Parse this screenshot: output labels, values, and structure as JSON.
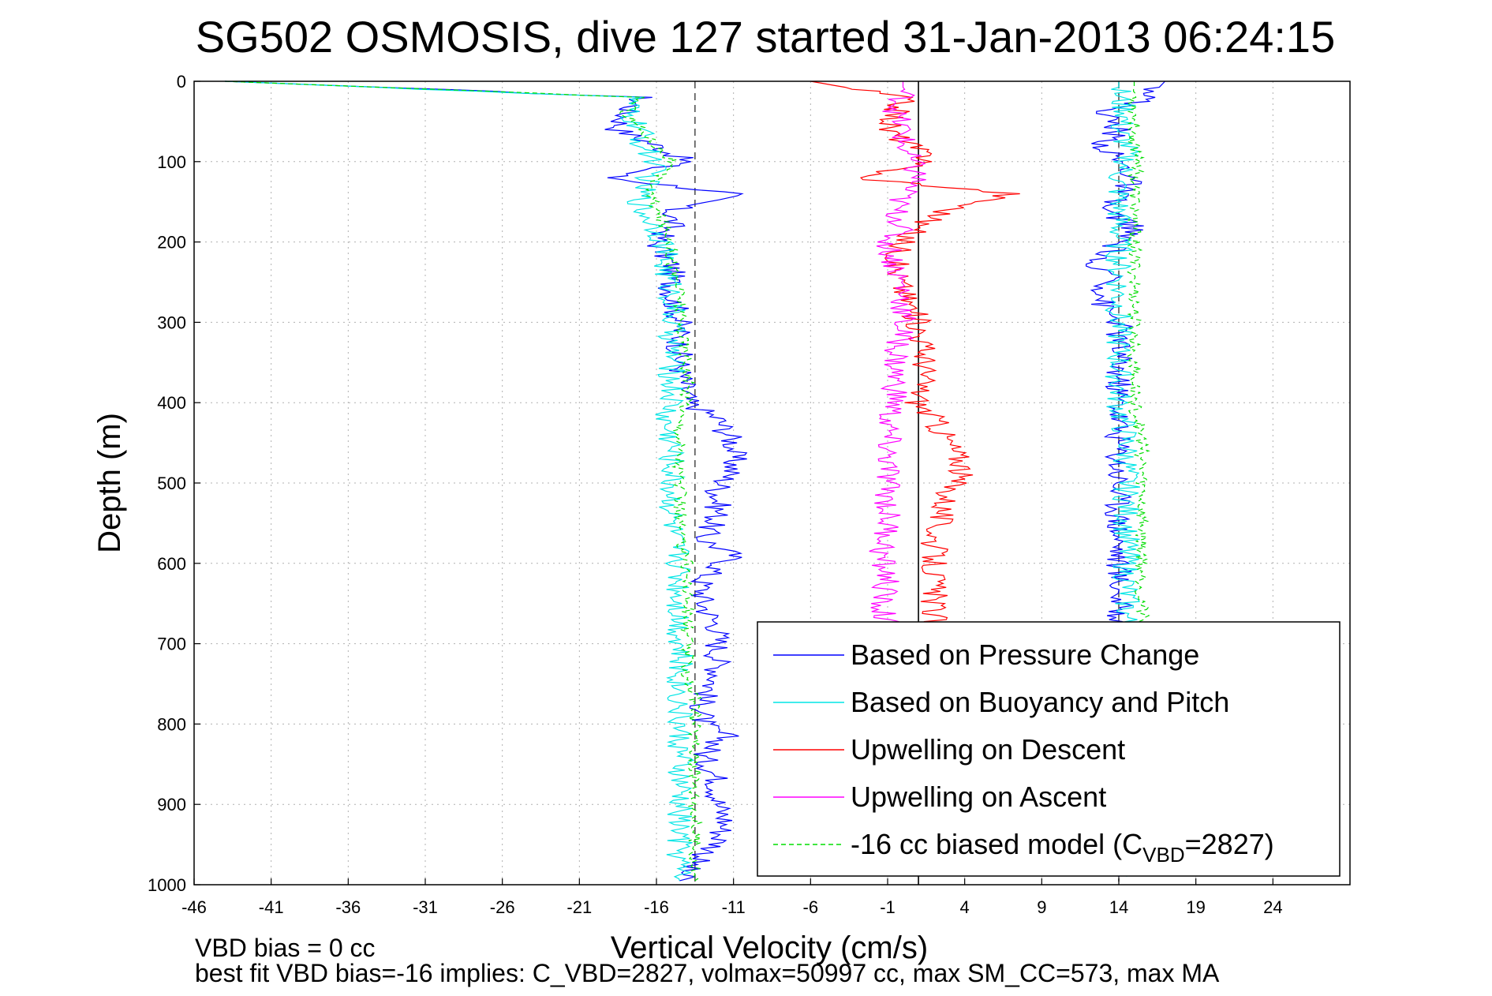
{
  "chart_data": {
    "type": "line",
    "title": "SG502 OSMOSIS, dive 127 started 31-Jan-2013 06:24:15",
    "xlabel": "Vertical Velocity (cm/s)",
    "ylabel": "Depth (m)",
    "xlim": [
      -46,
      29
    ],
    "ylim": [
      0,
      1000
    ],
    "y_reversed": true,
    "grid": true,
    "x_ticks": [
      -46,
      -41,
      -36,
      -31,
      -26,
      -21,
      -16,
      -11,
      -6,
      -1,
      4,
      9,
      14,
      19,
      24
    ],
    "y_ticks": [
      0,
      100,
      200,
      300,
      400,
      500,
      600,
      700,
      800,
      900,
      1000
    ],
    "reference_lines": [
      {
        "x": -13.5,
        "style": "dashed",
        "color": "#555555"
      },
      {
        "x": 1,
        "style": "solid",
        "color": "#000000"
      },
      {
        "x": 14,
        "style": "dashed",
        "color": "#555555"
      }
    ],
    "legend_position": "bottom-right",
    "series": [
      {
        "name": "Based on Pressure Change",
        "color": "#0000ff",
        "branch": "descent",
        "depth": [
          0,
          20,
          40,
          60,
          80,
          100,
          120,
          140,
          160,
          180,
          200,
          230,
          260,
          300,
          350,
          400,
          420,
          450,
          480,
          510,
          540,
          570,
          590,
          620,
          650,
          680,
          710,
          740,
          770,
          800,
          815,
          840,
          870,
          900,
          920,
          950,
          980,
          995
        ],
        "velocity": [
          -44,
          -17,
          -18,
          -18.5,
          -16,
          -14,
          -19,
          -11,
          -15,
          -15,
          -16,
          -15,
          -15,
          -14.5,
          -14.5,
          -14,
          -12,
          -11,
          -11,
          -12,
          -12,
          -13,
          -11,
          -13,
          -13,
          -12,
          -12,
          -12,
          -13,
          -13,
          -11.5,
          -13,
          -12,
          -12,
          -11.5,
          -12,
          -14,
          -14.5
        ]
      },
      {
        "name": "Based on Buoyancy and Pitch",
        "color": "#00e5e5",
        "branch": "descent",
        "depth": [
          0,
          20,
          40,
          60,
          80,
          100,
          120,
          140,
          160,
          180,
          200,
          230,
          260,
          300,
          350,
          400,
          420,
          450,
          480,
          510,
          540,
          570,
          590,
          620,
          650,
          680,
          710,
          740,
          770,
          800,
          815,
          840,
          870,
          900,
          920,
          950,
          980,
          995
        ],
        "velocity": [
          -44,
          -17.5,
          -18,
          -17,
          -17,
          -16,
          -16.5,
          -17,
          -17,
          -16,
          -15.5,
          -15.5,
          -15,
          -15,
          -15,
          -15,
          -15.5,
          -15,
          -15,
          -15,
          -15,
          -15,
          -14.5,
          -14.5,
          -14.5,
          -14.5,
          -14.5,
          -14.5,
          -14.5,
          -14.5,
          -14.5,
          -14.5,
          -14.5,
          -14.5,
          -14.5,
          -14.5,
          -14.5,
          -14.5
        ]
      },
      {
        "name": "Upwelling on Descent",
        "color": "#ff0000",
        "branch": "descent",
        "depth": [
          0,
          20,
          40,
          60,
          80,
          100,
          120,
          140,
          160,
          180,
          200,
          230,
          260,
          300,
          350,
          400,
          420,
          450,
          480,
          510,
          540,
          570,
          590,
          620,
          650,
          680
        ],
        "velocity": [
          -6,
          0,
          -0.5,
          -1,
          0.5,
          2,
          -3,
          7,
          3,
          1,
          0,
          -0.5,
          0,
          1,
          1.5,
          1,
          2,
          3,
          4,
          3,
          2.5,
          2,
          2,
          2,
          2,
          2
        ]
      },
      {
        "name": "Upwelling on Ascent",
        "color": "#ff00ff",
        "branch": "ascent",
        "depth": [
          0,
          20,
          40,
          60,
          80,
          100,
          120,
          140,
          160,
          180,
          200,
          230,
          260,
          300,
          350,
          400,
          420,
          450,
          480,
          510,
          540,
          570,
          590,
          620,
          650,
          680
        ],
        "velocity": [
          0,
          0,
          -0.5,
          0,
          0,
          0.5,
          1,
          0,
          -0.5,
          0,
          -1,
          -0.5,
          0,
          0,
          -0.5,
          -0.5,
          -1,
          -1,
          -1,
          -1,
          -1,
          -1,
          -1.5,
          -1,
          -1.5,
          -1
        ]
      },
      {
        "name": "-16 cc biased model (C_VBD=2827)",
        "color": "#00dd00",
        "branch": "descent",
        "style": "dashed",
        "depth": [
          0,
          20,
          40,
          60,
          80,
          100,
          120,
          140,
          160,
          180,
          200,
          230,
          260,
          300,
          350,
          400,
          420,
          450,
          480,
          510,
          540,
          570,
          590,
          620,
          650,
          680,
          710,
          740,
          770,
          800,
          815,
          840,
          870,
          900,
          920,
          950,
          980,
          995
        ],
        "velocity": [
          -44,
          -17,
          -18,
          -17,
          -16,
          -15,
          -16,
          -16.5,
          -16,
          -15.5,
          -15,
          -15,
          -14.5,
          -14.5,
          -14,
          -14,
          -14.5,
          -14.5,
          -14.5,
          -14.5,
          -14.5,
          -14.5,
          -14,
          -14,
          -14,
          -14,
          -14,
          -14,
          -13.5,
          -13.5,
          -13.5,
          -13.5,
          -13.5,
          -13.5,
          -13.5,
          -13.5,
          -13.5,
          -13.5
        ]
      },
      {
        "name": "",
        "color": "#0000ff",
        "branch": "ascent",
        "depth": [
          0,
          20,
          40,
          60,
          80,
          100,
          120,
          140,
          160,
          180,
          200,
          220,
          230,
          240,
          260,
          280,
          300,
          350,
          400,
          450,
          500,
          550,
          600,
          650,
          700,
          750,
          800,
          850,
          900,
          950,
          990
        ],
        "velocity": [
          17,
          16,
          13,
          14,
          13,
          14,
          15,
          14,
          13,
          15,
          14,
          13,
          11,
          14,
          13,
          13,
          14,
          14,
          14,
          14,
          14,
          14,
          14,
          14,
          14,
          14,
          14,
          14,
          14,
          14,
          14
        ]
      },
      {
        "name": "",
        "color": "#00e5e5",
        "branch": "ascent",
        "depth": [
          0,
          20,
          40,
          60,
          80,
          100,
          120,
          140,
          160,
          180,
          200,
          250,
          300,
          350,
          400,
          450,
          500,
          550,
          600,
          650,
          700,
          750,
          800,
          850,
          900,
          950,
          990
        ],
        "velocity": [
          14,
          14,
          14.5,
          14,
          14.5,
          14.5,
          14,
          14,
          14,
          14,
          14,
          14,
          14,
          14,
          14,
          14.5,
          14.5,
          14.5,
          14.5,
          14.5,
          14.5,
          14.5,
          14.5,
          14.5,
          14.5,
          14.5,
          14.5
        ]
      },
      {
        "name": "",
        "color": "#00dd00",
        "branch": "ascent",
        "style": "dashed",
        "depth": [
          0,
          20,
          40,
          60,
          80,
          100,
          120,
          140,
          160,
          180,
          200,
          250,
          300,
          350,
          400,
          450,
          500,
          550,
          600,
          650,
          700,
          750,
          800,
          850,
          900,
          950,
          990
        ],
        "velocity": [
          15,
          15,
          15,
          15,
          15,
          15.5,
          15,
          15,
          15,
          15,
          15,
          15,
          15,
          15,
          15,
          15.5,
          15.5,
          15.5,
          15.5,
          15.5,
          15.5,
          15.5,
          15.5,
          15.5,
          15.5,
          15.5,
          15.5
        ]
      }
    ],
    "legend": [
      {
        "label": "Based on Pressure Change",
        "color": "#0000ff",
        "style": "solid"
      },
      {
        "label": "Based on Buoyancy and Pitch",
        "color": "#00e5e5",
        "style": "solid"
      },
      {
        "label": "Upwelling on Descent",
        "color": "#ff0000",
        "style": "solid"
      },
      {
        "label": "Upwelling on Ascent",
        "color": "#ff00ff",
        "style": "solid"
      },
      {
        "label_prefix": "-16 cc biased model (C",
        "label_sub": "VBD",
        "label_suffix": "=2827)",
        "color": "#00dd00",
        "style": "dashed"
      }
    ],
    "annotations": [
      "VBD bias = 0 cc",
      "best fit VBD bias=-16 implies: C_VBD=2827, volmax=50997 cc, max SM_CC=573, max MA"
    ]
  }
}
